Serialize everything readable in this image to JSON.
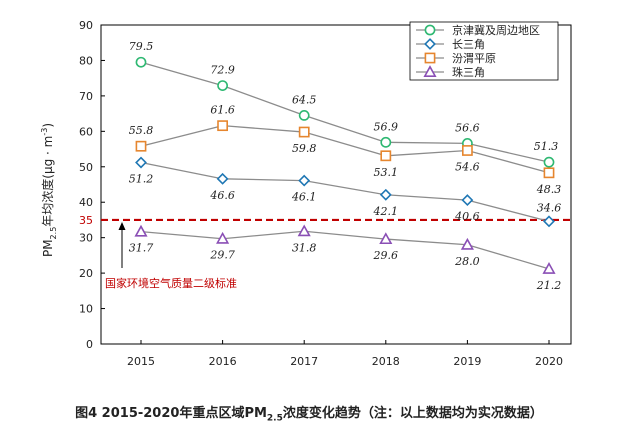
{
  "chart_data": {
    "type": "line",
    "categories": [
      "2015",
      "2016",
      "2017",
      "2018",
      "2019",
      "2020"
    ],
    "ylabel_main": "PM",
    "ylabel_sub": "2.5",
    "ylabel_rest": "年均浓度(μg · m",
    "ylabel_sup": "-3",
    "ylabel_close": ")",
    "ylim": [
      0,
      90
    ],
    "yticks": [
      0,
      10,
      20,
      30,
      40,
      50,
      60,
      70,
      80,
      90
    ],
    "grid": false,
    "legend_position": "top-right",
    "series": [
      {
        "name": "京津冀及周边地区",
        "marker": "circle",
        "color": "#2eb872",
        "values": [
          79.5,
          72.9,
          64.5,
          56.9,
          56.6,
          51.3
        ],
        "labels": [
          "79.5",
          "72.9",
          "64.5",
          "56.9",
          "56.6",
          "51.3"
        ]
      },
      {
        "name": "长三角",
        "marker": "diamond",
        "color": "#1f77b4",
        "values": [
          51.2,
          46.6,
          46.1,
          42.1,
          40.6,
          34.6
        ],
        "labels": [
          "51.2",
          "46.6",
          "46.1",
          "42.1",
          "40.6",
          "34.6"
        ]
      },
      {
        "name": "汾渭平原",
        "marker": "square",
        "color": "#e6862e",
        "values": [
          55.8,
          61.6,
          59.8,
          53.1,
          54.6,
          48.3
        ],
        "labels": [
          "55.8",
          "61.6",
          "59.8",
          "53.1",
          "54.6",
          "48.3"
        ]
      },
      {
        "name": "珠三角",
        "marker": "triangle",
        "color": "#8a4fb5",
        "values": [
          31.7,
          29.7,
          31.8,
          29.6,
          28.0,
          21.2
        ],
        "labels": [
          "31.7",
          "29.7",
          "31.8",
          "29.6",
          "28.0",
          "21.2"
        ]
      }
    ],
    "threshold": {
      "value": 35,
      "label": "35",
      "color": "#c00000"
    },
    "annotation": {
      "text": "国家环境空气质量二级标准",
      "color": "#c00000"
    }
  },
  "caption": {
    "prefix": "图4  2015-2020年重点区域PM",
    "sub": "2.5",
    "suffix": "浓度变化趋势（注：以上数据均为实况数据）"
  }
}
